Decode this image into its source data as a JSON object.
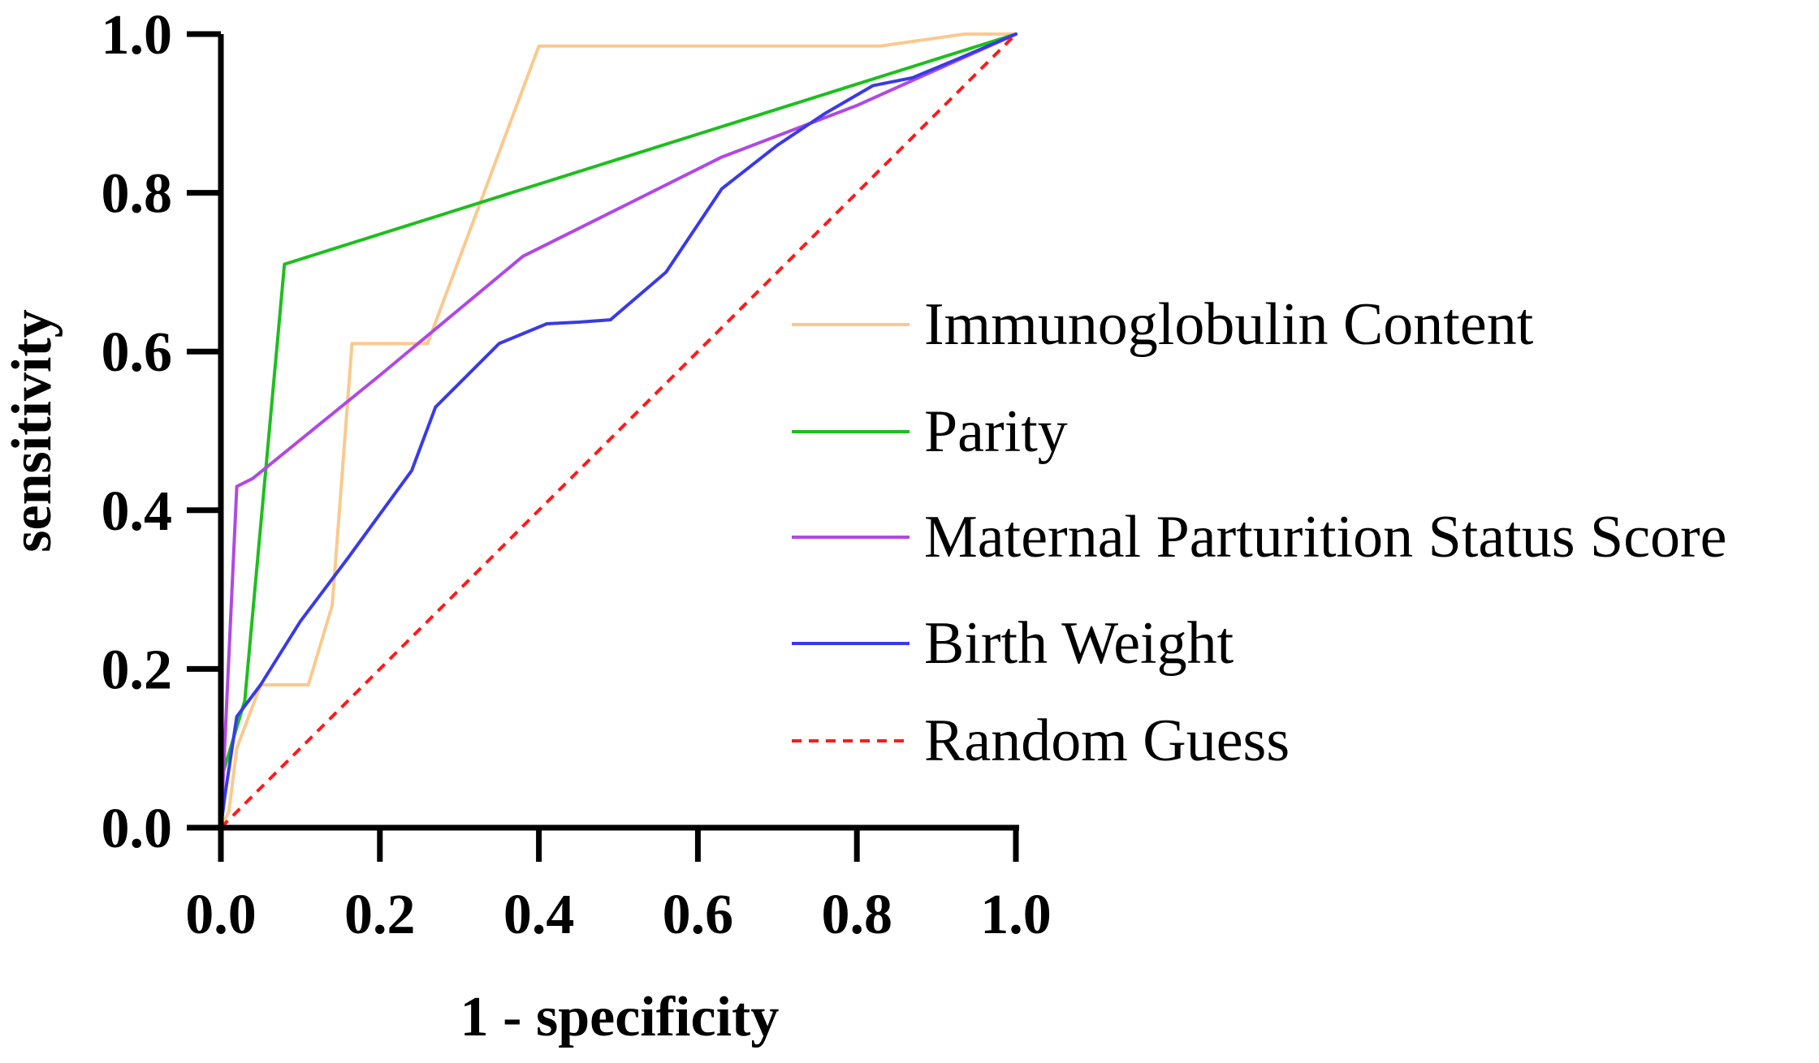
{
  "chart_data": {
    "type": "line",
    "title": "",
    "xlabel": "1 - specificity",
    "ylabel": "sensitivity",
    "xlim": [
      0,
      1
    ],
    "ylim": [
      0,
      1
    ],
    "xticks": [
      "0.0",
      "0.2",
      "0.4",
      "0.6",
      "0.8",
      "1.0"
    ],
    "yticks": [
      "0.0",
      "0.2",
      "0.4",
      "0.6",
      "0.8",
      "1.0"
    ],
    "grid": false,
    "legend_position": "right",
    "series": [
      {
        "name": "Immunoglobulin Content",
        "color": "#fbc98e",
        "dashed": false,
        "points": [
          [
            0,
            0
          ],
          [
            0.01,
            0.02
          ],
          [
            0.02,
            0.1
          ],
          [
            0.05,
            0.18
          ],
          [
            0.11,
            0.18
          ],
          [
            0.14,
            0.28
          ],
          [
            0.165,
            0.61
          ],
          [
            0.26,
            0.61
          ],
          [
            0.4,
            0.985
          ],
          [
            0.83,
            0.985
          ],
          [
            0.935,
            1.0
          ],
          [
            1.0,
            1.0
          ]
        ]
      },
      {
        "name": "Parity",
        "color": "#1ebe1e",
        "dashed": false,
        "points": [
          [
            0,
            0
          ],
          [
            0,
            0.06
          ],
          [
            0.03,
            0.16
          ],
          [
            0.08,
            0.71
          ],
          [
            1.0,
            1.0
          ]
        ]
      },
      {
        "name": "Maternal Parturition Status Score",
        "color": "#b048e6",
        "dashed": false,
        "points": [
          [
            0,
            0
          ],
          [
            0.02,
            0.43
          ],
          [
            0.04,
            0.44
          ],
          [
            0.2,
            0.57
          ],
          [
            0.38,
            0.72
          ],
          [
            0.5,
            0.78
          ],
          [
            0.63,
            0.845
          ],
          [
            0.8,
            0.91
          ],
          [
            1.0,
            1.0
          ]
        ]
      },
      {
        "name": "Birth Weight",
        "color": "#3a3ae8",
        "dashed": false,
        "points": [
          [
            0,
            0
          ],
          [
            0.005,
            0.04
          ],
          [
            0.02,
            0.14
          ],
          [
            0.05,
            0.18
          ],
          [
            0.1,
            0.26
          ],
          [
            0.16,
            0.34
          ],
          [
            0.24,
            0.45
          ],
          [
            0.27,
            0.53
          ],
          [
            0.35,
            0.61
          ],
          [
            0.41,
            0.635
          ],
          [
            0.45,
            0.637
          ],
          [
            0.49,
            0.64
          ],
          [
            0.56,
            0.7
          ],
          [
            0.63,
            0.805
          ],
          [
            0.7,
            0.86
          ],
          [
            0.76,
            0.9
          ],
          [
            0.82,
            0.935
          ],
          [
            0.87,
            0.945
          ],
          [
            0.93,
            0.97
          ],
          [
            1.0,
            1.0
          ]
        ]
      },
      {
        "name": "Random Guess",
        "color": "#ff1a1a",
        "dashed": true,
        "points": [
          [
            0,
            0
          ],
          [
            1,
            1
          ]
        ]
      }
    ]
  }
}
